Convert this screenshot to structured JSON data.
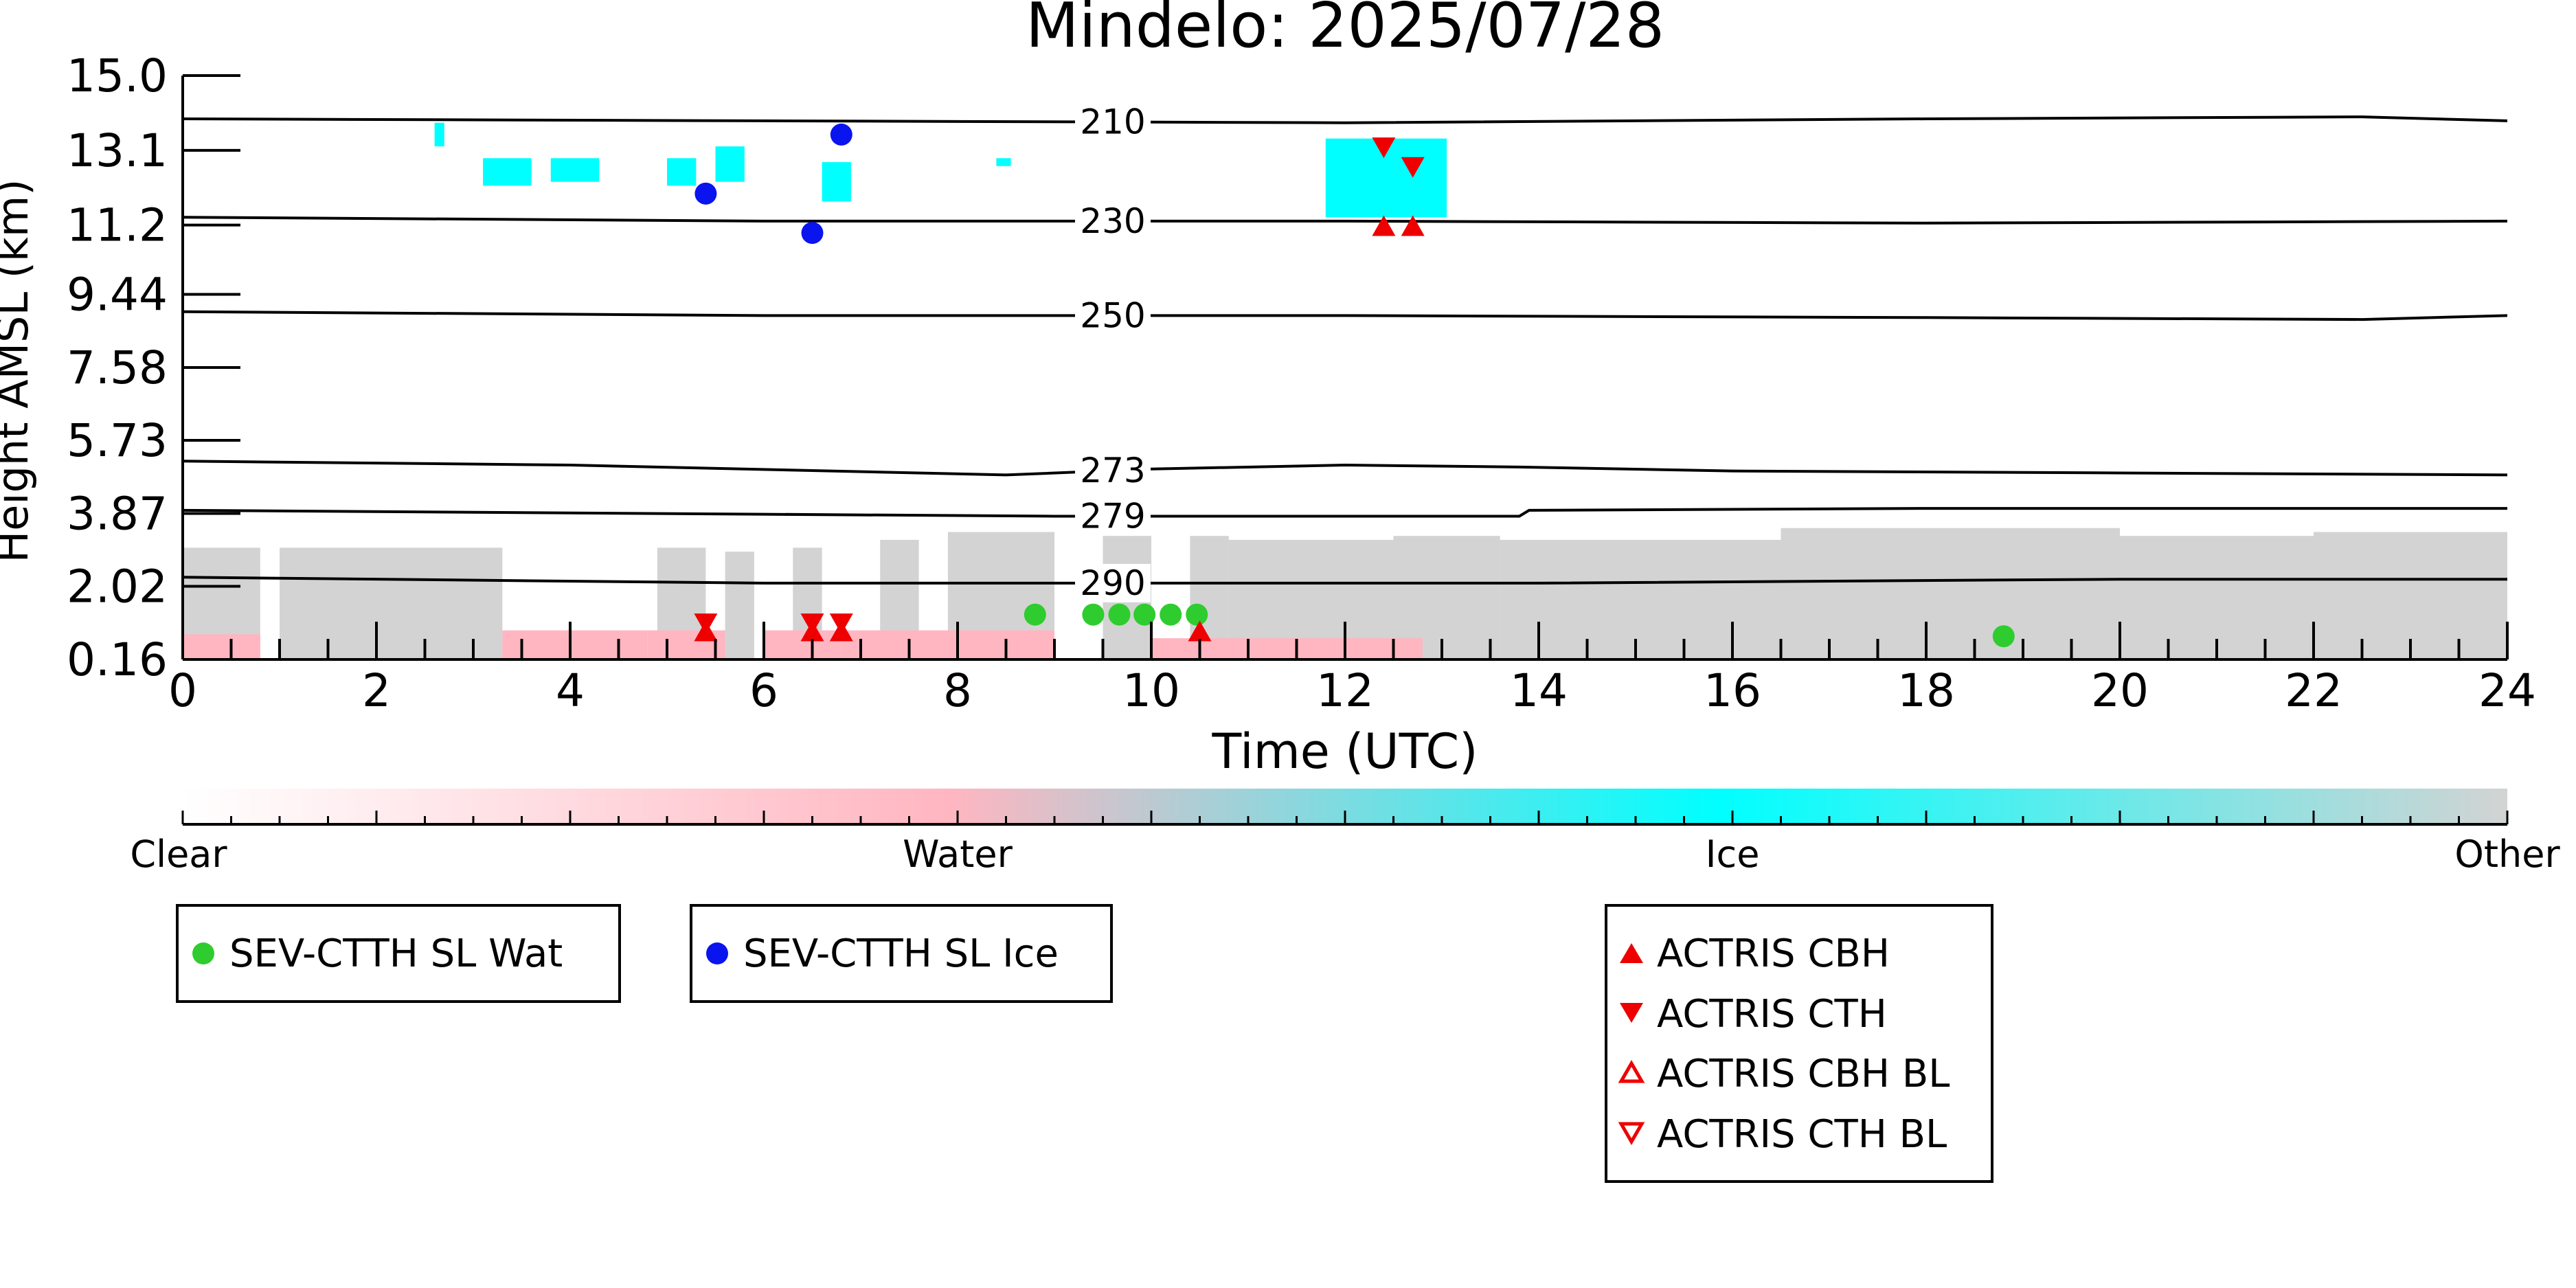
{
  "chart_data": {
    "type": "scatter",
    "title": "Mindelo: 2025/07/28",
    "xlabel": "Time (UTC)",
    "ylabel": "Height AMSL (km)",
    "xlim": [
      0,
      24
    ],
    "ylim": [
      0.16,
      15.0
    ],
    "x_ticks": [
      0,
      2,
      4,
      6,
      8,
      10,
      12,
      14,
      16,
      18,
      20,
      22,
      24
    ],
    "y_ticks": [
      "0.16",
      "2.02",
      "3.87",
      "5.73",
      "7.58",
      "9.44",
      "11.2",
      "13.1",
      "15.0"
    ],
    "y_tick_values": [
      0.16,
      2.02,
      3.87,
      5.73,
      7.58,
      9.44,
      11.2,
      13.1,
      15.0
    ],
    "contours": [
      {
        "label": "210",
        "points": [
          [
            0,
            13.9
          ],
          [
            6,
            13.85
          ],
          [
            12,
            13.8
          ],
          [
            18,
            13.9
          ],
          [
            22.5,
            13.95
          ],
          [
            24,
            13.85
          ]
        ]
      },
      {
        "label": "230",
        "points": [
          [
            0,
            11.4
          ],
          [
            6,
            11.3
          ],
          [
            12,
            11.3
          ],
          [
            18,
            11.25
          ],
          [
            24,
            11.3
          ]
        ]
      },
      {
        "label": "250",
        "points": [
          [
            0,
            9.0
          ],
          [
            6,
            8.9
          ],
          [
            12,
            8.9
          ],
          [
            18,
            8.85
          ],
          [
            22.5,
            8.8
          ],
          [
            24,
            8.9
          ]
        ]
      },
      {
        "label": "273",
        "points": [
          [
            0,
            5.2
          ],
          [
            4,
            5.1
          ],
          [
            8.5,
            4.85
          ],
          [
            10,
            5.0
          ],
          [
            12,
            5.1
          ],
          [
            13.8,
            5.05
          ],
          [
            16,
            4.95
          ],
          [
            20,
            4.9
          ],
          [
            24,
            4.85
          ]
        ]
      },
      {
        "label": "279",
        "points": [
          [
            0,
            3.95
          ],
          [
            6,
            3.85
          ],
          [
            9,
            3.8
          ],
          [
            13.8,
            3.8
          ],
          [
            13.9,
            3.95
          ],
          [
            18,
            4.0
          ],
          [
            24,
            4.0
          ]
        ]
      },
      {
        "label": "290",
        "points": [
          [
            0,
            2.25
          ],
          [
            6,
            2.1
          ],
          [
            10,
            2.1
          ],
          [
            14,
            2.1
          ],
          [
            20,
            2.2
          ],
          [
            24,
            2.2
          ]
        ]
      }
    ],
    "series": [
      {
        "name": "SEV-CTTH SL Wat",
        "marker": "circle",
        "color": "#2ecc2e",
        "points": [
          [
            8.8,
            1.3
          ],
          [
            9.4,
            1.3
          ],
          [
            9.67,
            1.3
          ],
          [
            9.93,
            1.3
          ],
          [
            10.2,
            1.3
          ],
          [
            10.47,
            1.3
          ],
          [
            18.8,
            0.75
          ]
        ]
      },
      {
        "name": "SEV-CTTH SL Ice",
        "marker": "circle",
        "color": "#0a14ee",
        "points": [
          [
            5.4,
            12.0
          ],
          [
            6.5,
            11.0
          ],
          [
            6.8,
            13.5
          ]
        ]
      },
      {
        "name": "ACTRIS CBH",
        "marker": "triangle-up",
        "color": "#ee0000",
        "points": [
          [
            5.4,
            0.85
          ],
          [
            6.5,
            0.85
          ],
          [
            6.8,
            0.85
          ],
          [
            10.5,
            0.85
          ],
          [
            12.4,
            11.15
          ],
          [
            12.7,
            11.15
          ]
        ]
      },
      {
        "name": "ACTRIS CTH",
        "marker": "triangle-down",
        "color": "#ee0000",
        "points": [
          [
            5.4,
            1.1
          ],
          [
            6.5,
            1.1
          ],
          [
            6.8,
            1.1
          ],
          [
            12.4,
            13.2
          ],
          [
            12.7,
            12.7
          ]
        ]
      },
      {
        "name": "ACTRIS CBH BL",
        "marker": "triangle-up-open",
        "color": "#ee0000",
        "points": []
      },
      {
        "name": "ACTRIS CTH BL",
        "marker": "triangle-down-open",
        "color": "#ee0000",
        "points": []
      }
    ],
    "cloud_mask": {
      "other_bands": [
        [
          0,
          0.8,
          3.0
        ],
        [
          1.0,
          3.3,
          3.0
        ],
        [
          4.9,
          5.4,
          3.0
        ],
        [
          5.6,
          5.9,
          2.9
        ],
        [
          6.3,
          6.6,
          3.0
        ],
        [
          7.2,
          7.6,
          3.2
        ],
        [
          7.9,
          8.5,
          3.4
        ],
        [
          8.5,
          9.0,
          3.4
        ],
        [
          9.5,
          10.0,
          3.3
        ],
        [
          10.4,
          10.8,
          3.3
        ],
        [
          10.8,
          12.5,
          3.2
        ],
        [
          12.5,
          13.6,
          3.3
        ],
        [
          13.6,
          16.5,
          3.2
        ],
        [
          16.5,
          20.0,
          3.5
        ],
        [
          20.0,
          22.0,
          3.3
        ],
        [
          22.0,
          24.0,
          3.4
        ]
      ],
      "water_bands": [
        [
          0,
          0.8,
          0.8
        ],
        [
          3.3,
          4.8,
          0.9
        ],
        [
          4.8,
          5.6,
          0.9
        ],
        [
          6.0,
          6.8,
          0.9
        ],
        [
          6.8,
          8.4,
          0.9
        ],
        [
          8.4,
          9.0,
          0.9
        ],
        [
          10.0,
          12.8,
          0.7
        ]
      ],
      "ice_patches": [
        [
          2.6,
          2.7,
          13.2,
          13.8
        ],
        [
          3.1,
          3.6,
          12.2,
          12.9
        ],
        [
          3.8,
          4.3,
          12.3,
          12.9
        ],
        [
          5.0,
          5.3,
          12.2,
          12.9
        ],
        [
          5.5,
          5.8,
          12.3,
          13.2
        ],
        [
          6.6,
          6.9,
          11.8,
          12.8
        ],
        [
          8.4,
          8.55,
          12.7,
          12.9
        ],
        [
          11.8,
          13.05,
          11.4,
          13.4
        ]
      ]
    },
    "colorbar": {
      "labels": [
        "Clear",
        "Water",
        "Ice",
        "Other"
      ],
      "stops": [
        "#ffffff",
        "#ffb6c1",
        "#00ffff",
        "#d3d3d3"
      ]
    },
    "legend_left": [
      "SEV-CTTH SL Wat"
    ],
    "legend_mid": [
      "SEV-CTTH SL Ice"
    ],
    "legend_right": [
      "ACTRIS CBH",
      "ACTRIS CTH",
      "ACTRIS CBH BL",
      "ACTRIS CTH BL"
    ]
  }
}
